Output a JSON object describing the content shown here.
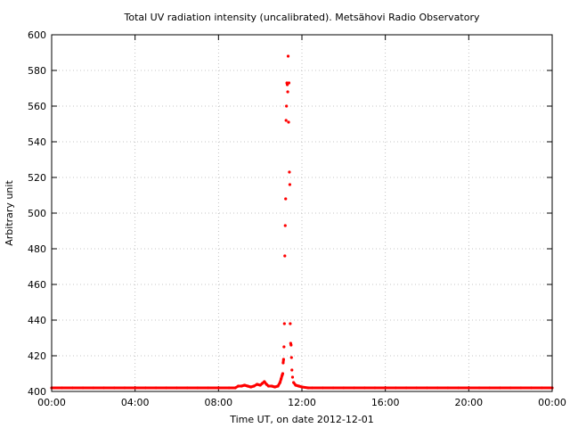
{
  "chart_data": {
    "type": "scatter",
    "title": "Total UV radiation intensity (uncalibrated). Metsähovi Radio Observatory",
    "xlabel": "Time UT, on date 2012-12-01",
    "ylabel": "Arbitrary unit",
    "x_unit": "hours UT",
    "xlim": [
      0,
      24
    ],
    "ylim": [
      400,
      600
    ],
    "x_tick_values": [
      0,
      4,
      8,
      12,
      16,
      20,
      24
    ],
    "x_tick_labels": [
      "00:00",
      "04:00",
      "08:00",
      "12:00",
      "16:00",
      "20:00",
      "00:00"
    ],
    "y_tick_values": [
      400,
      420,
      440,
      460,
      480,
      500,
      520,
      540,
      560,
      580,
      600
    ],
    "y_tick_labels": [
      "400",
      "420",
      "440",
      "460",
      "480",
      "500",
      "520",
      "540",
      "560",
      "580",
      "600"
    ],
    "grid": true,
    "legend": "none",
    "series": [
      {
        "color": "#ff0000",
        "points": [
          [
            0.0,
            402
          ],
          [
            0.5,
            402
          ],
          [
            1.0,
            402
          ],
          [
            1.5,
            402
          ],
          [
            2.0,
            402
          ],
          [
            2.5,
            402
          ],
          [
            3.0,
            402
          ],
          [
            3.5,
            402
          ],
          [
            4.0,
            402
          ],
          [
            4.5,
            402
          ],
          [
            5.0,
            402
          ],
          [
            5.5,
            402
          ],
          [
            6.0,
            402
          ],
          [
            6.5,
            402
          ],
          [
            7.0,
            402
          ],
          [
            7.5,
            402
          ],
          [
            8.0,
            402
          ],
          [
            8.5,
            402
          ],
          [
            8.8,
            402
          ],
          [
            8.95,
            403
          ],
          [
            9.1,
            403
          ],
          [
            9.25,
            403.5
          ],
          [
            9.4,
            403
          ],
          [
            9.55,
            402.5
          ],
          [
            9.7,
            403
          ],
          [
            9.85,
            404
          ],
          [
            10.0,
            403.5
          ],
          [
            10.1,
            404.5
          ],
          [
            10.2,
            405.5
          ],
          [
            10.3,
            404
          ],
          [
            10.4,
            403
          ],
          [
            10.55,
            403
          ],
          [
            10.7,
            402.5
          ],
          [
            10.85,
            403
          ],
          [
            10.95,
            405
          ],
          [
            11.0,
            407
          ],
          [
            11.05,
            409
          ],
          [
            11.08,
            410
          ],
          [
            11.1,
            416
          ],
          [
            11.12,
            418
          ],
          [
            11.14,
            425
          ],
          [
            11.16,
            438
          ],
          [
            11.18,
            476
          ],
          [
            11.2,
            493
          ],
          [
            11.22,
            508
          ],
          [
            11.24,
            552
          ],
          [
            11.26,
            560
          ],
          [
            11.28,
            573
          ],
          [
            11.3,
            572
          ],
          [
            11.32,
            568
          ],
          [
            11.34,
            588
          ],
          [
            11.36,
            551
          ],
          [
            11.38,
            573
          ],
          [
            11.4,
            523
          ],
          [
            11.42,
            516
          ],
          [
            11.44,
            438
          ],
          [
            11.46,
            427
          ],
          [
            11.48,
            426
          ],
          [
            11.5,
            419
          ],
          [
            11.52,
            412
          ],
          [
            11.55,
            408
          ],
          [
            11.6,
            405
          ],
          [
            11.7,
            403.5
          ],
          [
            11.85,
            403
          ],
          [
            12.0,
            402.5
          ],
          [
            12.3,
            402
          ],
          [
            12.5,
            402
          ],
          [
            13.0,
            402
          ],
          [
            13.5,
            402
          ],
          [
            14.0,
            402
          ],
          [
            14.5,
            402
          ],
          [
            15.0,
            402
          ],
          [
            15.5,
            402
          ],
          [
            16.0,
            402
          ],
          [
            16.5,
            402
          ],
          [
            17.0,
            402
          ],
          [
            17.5,
            402
          ],
          [
            18.0,
            402
          ],
          [
            18.5,
            402
          ],
          [
            19.0,
            402
          ],
          [
            19.5,
            402
          ],
          [
            20.0,
            402
          ],
          [
            20.5,
            402
          ],
          [
            21.0,
            402
          ],
          [
            21.5,
            402
          ],
          [
            22.0,
            402
          ],
          [
            22.5,
            402
          ],
          [
            23.0,
            402
          ],
          [
            23.5,
            402
          ],
          [
            24.0,
            402
          ]
        ]
      }
    ]
  }
}
